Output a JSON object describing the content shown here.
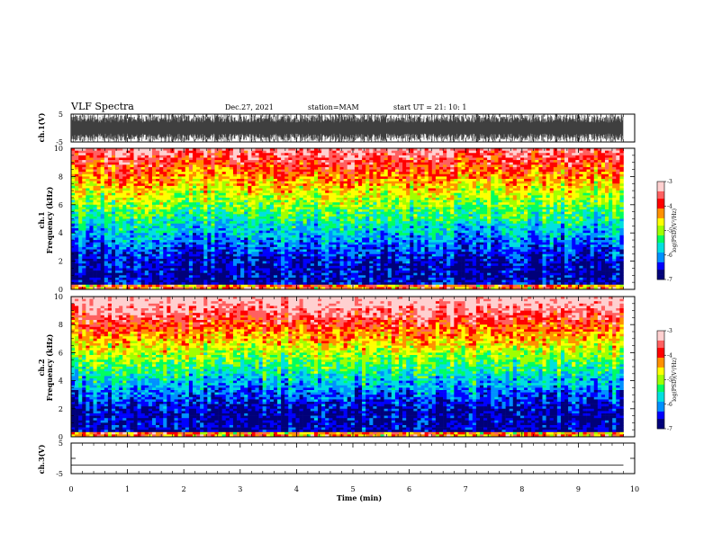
{
  "header": {
    "title": "VLF Spectra",
    "date": "Dec.27, 2021",
    "station": "station=MAM",
    "start": "start  UT =   21: 10: 1"
  },
  "chart_data": [
    {
      "type": "line",
      "panel": "ch1-waveform",
      "ylabel": "ch.1(V)",
      "ylim": [
        -5,
        5
      ],
      "yticks": [
        "5",
        "-5"
      ],
      "xlim": [
        0,
        10
      ],
      "description_values": {
        "amplitude_range_V": [
          -5,
          5
        ]
      }
    },
    {
      "type": "heatmap",
      "panel": "ch1-spectrogram",
      "ylabel": "ch.1\nFrequency (kHz)",
      "ylabel_line1": "ch.1",
      "ylabel_line2": "Frequency (kHz)",
      "ylim": [
        0,
        10
      ],
      "yticks": [
        "0",
        "2",
        "4",
        "6",
        "8",
        "10"
      ],
      "xlim": [
        0,
        9.8
      ],
      "colorbar": {
        "label": "log(PSD)(V²/Hz)",
        "range": [
          -7,
          -3
        ],
        "ticks": [
          "-3",
          "-4",
          "-5",
          "-6",
          "-7"
        ]
      },
      "colormap": [
        "#00007a",
        "#0000ff",
        "#0090ff",
        "#00e0e0",
        "#00ff60",
        "#a0ff00",
        "#ffff00",
        "#ff9000",
        "#ff0000",
        "#ff6060",
        "#ffd0d0"
      ]
    },
    {
      "type": "heatmap",
      "panel": "ch2-spectrogram",
      "ylabel_line1": "ch.2",
      "ylabel_line2": "Frequency (kHz)",
      "ylim": [
        0,
        10
      ],
      "yticks": [
        "0",
        "2",
        "4",
        "6",
        "8",
        "10"
      ],
      "xlim": [
        0,
        9.8
      ],
      "colorbar": {
        "label": "log(PSD)(V²/Hz)",
        "range": [
          -7,
          -3
        ],
        "ticks": [
          "-3",
          "-4",
          "-5",
          "-6",
          "-7"
        ]
      }
    },
    {
      "type": "line",
      "panel": "ch3-waveform",
      "ylabel": "ch.3(V)",
      "ylim": [
        -5,
        5
      ],
      "yticks": [
        "5",
        "0",
        "-5"
      ],
      "x": [
        0,
        9.8
      ],
      "y": [
        -2.2,
        -2.2
      ]
    }
  ],
  "xaxis": {
    "label": "Time (min)",
    "ticks": [
      "0",
      "1",
      "2",
      "3",
      "4",
      "5",
      "6",
      "7",
      "8",
      "9",
      "10"
    ],
    "range": [
      0,
      10
    ]
  }
}
